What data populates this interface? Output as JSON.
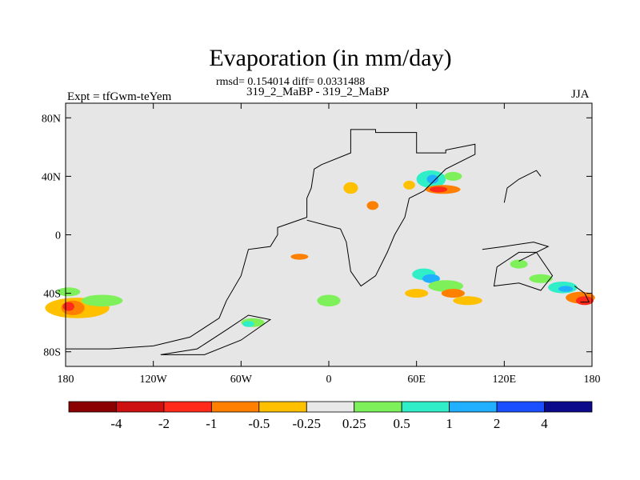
{
  "chart_data": {
    "type": "heatmap",
    "title": "Evaporation (in mm/day)",
    "stats_text": "rmsd= 0.154014 diff= 0.0331488",
    "cases_text": "319_2_MaBP - 319_2_MaBP",
    "left_label": "Expt = tfGwm-teYem",
    "right_label": "JJA",
    "x_ticks": [
      "180",
      "120W",
      "60W",
      "0",
      "60E",
      "120E",
      "180"
    ],
    "y_ticks": [
      "80N",
      "40N",
      "0",
      "40S",
      "80S"
    ],
    "xlim": [
      -180,
      180
    ],
    "ylim": [
      -90,
      90
    ],
    "colorbar": {
      "labels": [
        "-4",
        "-2",
        "-1",
        "-0.5",
        "-0.25",
        "0.25",
        "0.5",
        "1",
        "2",
        "4"
      ],
      "colors": [
        "#8b0000",
        "#cd1010",
        "#ff2a1a",
        "#ff8000",
        "#ffc000",
        "#e8e8e8",
        "#7ef05a",
        "#30efc8",
        "#20b0ff",
        "#1a4fff",
        "#0a0a8a"
      ]
    }
  }
}
